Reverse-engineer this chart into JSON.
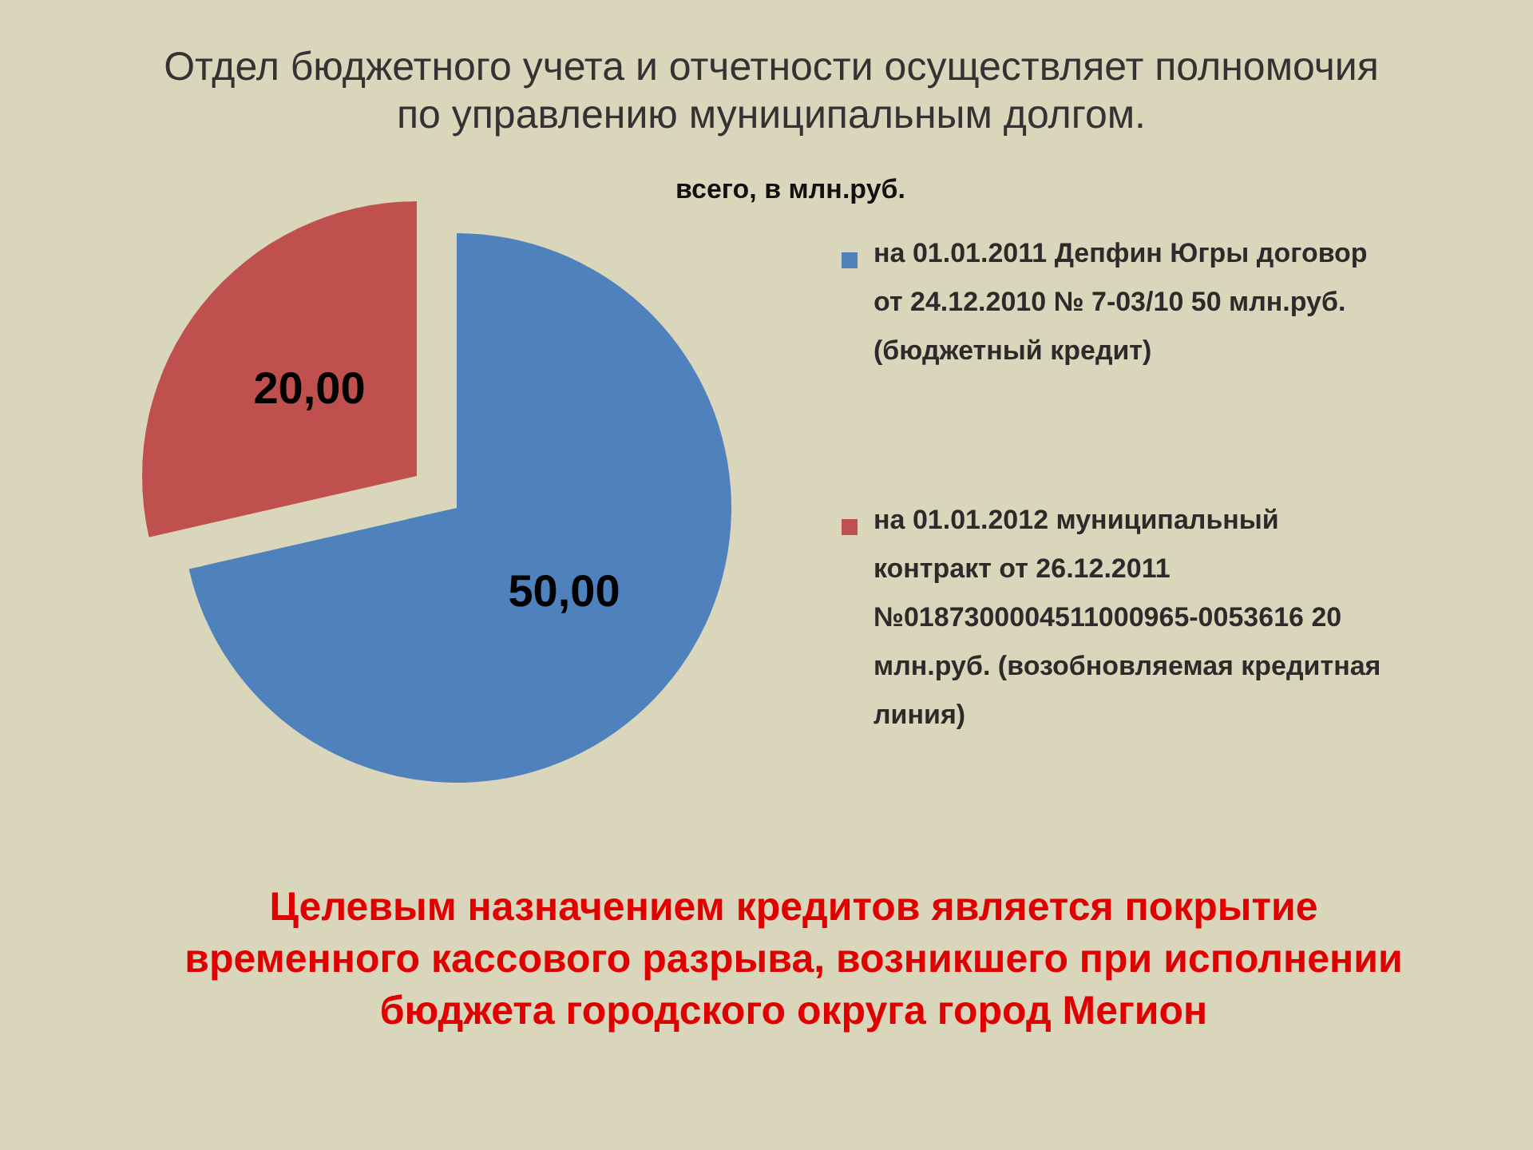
{
  "chart_data": {
    "type": "pie",
    "title": "Отдел бюджетного учета и отчетности осуществляет полномочия по управлению муниципальным долгом.",
    "subtitle": "всего, в млн.руб.",
    "categories": [
      "на 01.01.2011 Депфин Югры договор от 24.12.2010 № 7-03/10 50 млн.руб. (бюджетный кредит)",
      "на 01.01.2012 муниципальный контракт от 26.12.2011 №0187300004511000965-0053616 20 млн.руб. (возобновляемая кредитная линия)"
    ],
    "values": [
      50,
      20
    ],
    "colors": [
      "#4f81bd",
      "#c0504d"
    ],
    "value_labels": [
      "50,00",
      "20,00"
    ],
    "legend": "right",
    "annotations": [
      "Целевым назначением кредитов является покрытие временного кассового разрыва, возникшего при исполнении бюджета городского округа город Мегион"
    ]
  }
}
